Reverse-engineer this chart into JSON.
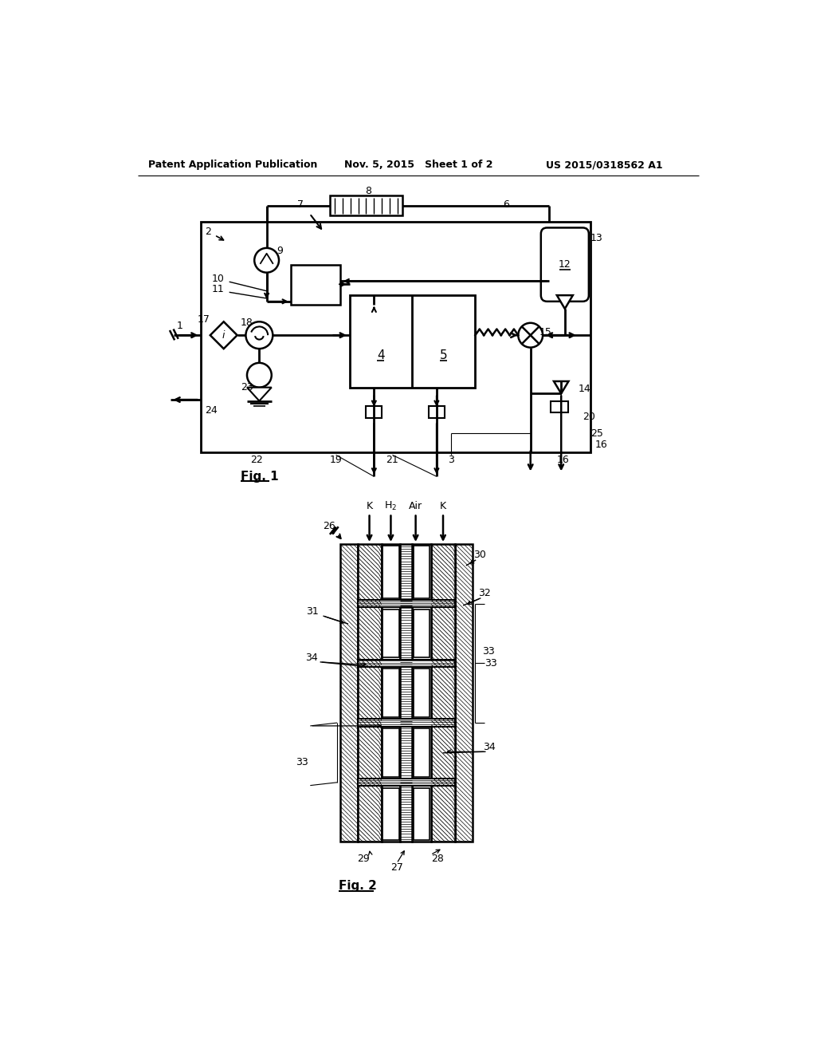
{
  "bg": "#ffffff",
  "hdr_l": "Patent Application Publication",
  "hdr_c": "Nov. 5, 2015   Sheet 1 of 2",
  "hdr_r": "US 2015/0318562 A1",
  "fig1": "Fig. 1",
  "fig2": "Fig. 2",
  "lw": 1.8,
  "fs": 9
}
